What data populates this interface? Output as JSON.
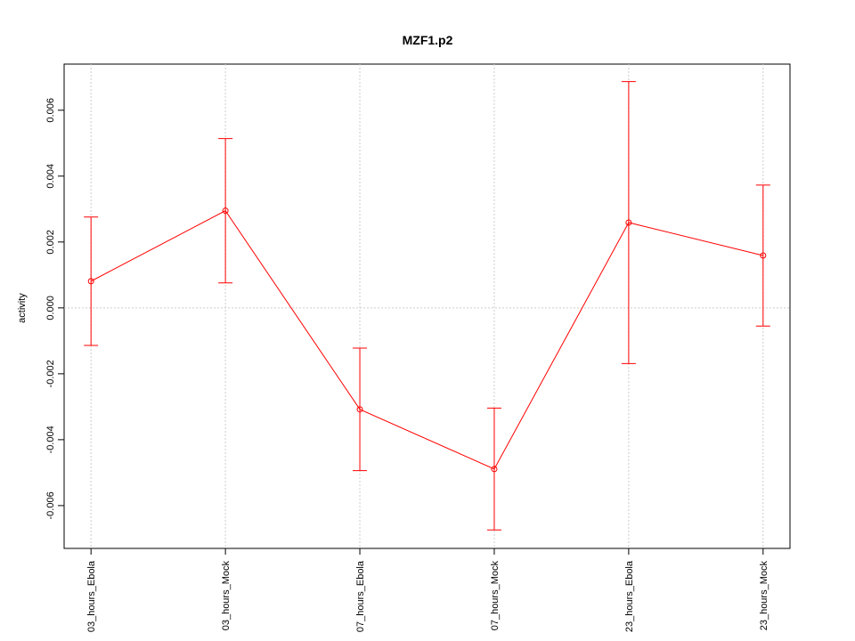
{
  "chart_data": {
    "type": "line",
    "title": "MZF1.p2",
    "y_label": "activity",
    "categories": [
      "03_hours_Ebola",
      "03_hours_Mock",
      "07_hours_Ebola",
      "07_hours_Mock",
      "23_hours_Ebola",
      "23_hours_Mock"
    ],
    "series": [
      {
        "color": "#ff0000",
        "values": [
          0.00081,
          0.00295,
          -0.00308,
          -0.00489,
          0.00259,
          0.00159
        ],
        "errors": [
          0.00195,
          0.00219,
          0.00186,
          0.00185,
          0.00428,
          0.00214
        ]
      }
    ],
    "ylim": [
      -0.0073,
      0.0074
    ],
    "yticks": [
      -0.006,
      -0.004,
      -0.002,
      {
        "value": 0,
        "label": "0.000"
      },
      0.002,
      0.004,
      0.006
    ],
    "reference_line": 0,
    "grid": true
  }
}
